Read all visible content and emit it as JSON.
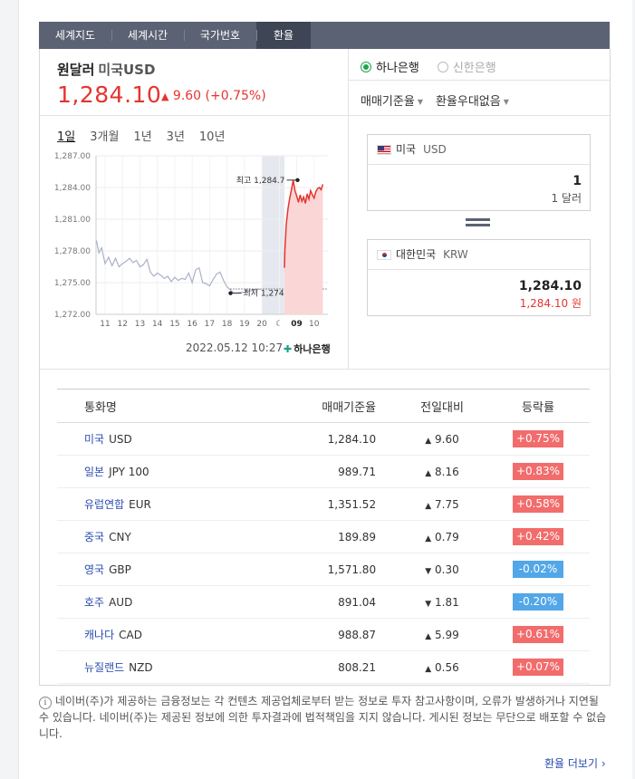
{
  "tabs": [
    {
      "label": "세계지도",
      "active": false
    },
    {
      "label": "세계시간",
      "active": false
    },
    {
      "label": "국가번호",
      "active": false
    },
    {
      "label": "환율",
      "active": true
    }
  ],
  "summary": {
    "title": "원달러",
    "subtitle": "미국USD",
    "rate": "1,284.10",
    "change_arrow": "▲",
    "change": "9.60",
    "change_pct": "(+0.75%)",
    "up_color": "#e4352f"
  },
  "periods": [
    {
      "label": "1일",
      "active": true
    },
    {
      "label": "3개월",
      "active": false
    },
    {
      "label": "1년",
      "active": false
    },
    {
      "label": "3년",
      "active": false
    },
    {
      "label": "10년",
      "active": false
    }
  ],
  "chart_data": {
    "type": "line",
    "x_ticks": [
      "11",
      "12",
      "13",
      "14",
      "15",
      "16",
      "17",
      "18",
      "19",
      "20",
      "☾",
      "09",
      "10"
    ],
    "y_ticks": [
      1287.0,
      1284.0,
      1281.0,
      1278.0,
      1275.0,
      1272.0
    ],
    "y_tick_labels": [
      "1,287.00",
      "1,284.00",
      "1,281.00",
      "1,278.00",
      "1,275.00",
      "1,272.00"
    ],
    "ylim": [
      1272,
      1287
    ],
    "x_range": [
      10.5,
      10.8
    ],
    "night_band": [
      20.0,
      21.3
    ],
    "baseline": 1274.4,
    "series_prev": {
      "color": "#aab0c8",
      "x": [
        10.5,
        10.65,
        10.8,
        11.0,
        11.2,
        11.4,
        11.6,
        11.8,
        12.0,
        12.2,
        12.4,
        12.6,
        12.8,
        13.0,
        13.2,
        13.4,
        13.6,
        13.8,
        14.0,
        14.2,
        14.4,
        14.6,
        14.8,
        15.0,
        15.2,
        15.4,
        15.6,
        15.8,
        16.0,
        16.2,
        16.4,
        16.6,
        16.8,
        17.0,
        17.2,
        17.4,
        17.6,
        17.8,
        18.0,
        18.2,
        18.4
      ],
      "y": [
        1279.0,
        1277.8,
        1278.3,
        1276.8,
        1277.4,
        1276.6,
        1277.3,
        1276.5,
        1276.8,
        1277.0,
        1277.3,
        1276.9,
        1277.1,
        1276.5,
        1276.7,
        1277.2,
        1276.0,
        1275.6,
        1275.9,
        1275.7,
        1275.4,
        1275.6,
        1275.1,
        1275.5,
        1275.2,
        1275.4,
        1275.3,
        1275.9,
        1275.0,
        1276.2,
        1276.4,
        1275.0,
        1274.9,
        1274.7,
        1275.3,
        1275.8,
        1276.0,
        1275.2,
        1274.6,
        1274.3,
        1274.0
      ]
    },
    "series_prev_tail": {
      "color": "#aab0c8",
      "x": [
        18.4,
        19.0,
        19.6,
        20.0
      ],
      "y": [
        1274.0,
        1274.1,
        1274.3,
        1274.4
      ]
    },
    "series_today": {
      "name": "",
      "color": "#e4352f",
      "fill": "#fbd6d6",
      "x": [
        21.3,
        21.32,
        21.4,
        21.5,
        21.6,
        21.7,
        21.8,
        21.9,
        22.0,
        22.1,
        22.2,
        22.3,
        22.4,
        22.5,
        22.6,
        22.7,
        22.8,
        22.9,
        23.0,
        23.1,
        23.2,
        23.3,
        23.4,
        23.5
      ],
      "y": [
        1276.4,
        1278.0,
        1280.5,
        1282.0,
        1283.0,
        1283.8,
        1284.7,
        1283.7,
        1283.2,
        1282.6,
        1283.3,
        1282.7,
        1283.1,
        1282.5,
        1283.4,
        1282.9,
        1283.7,
        1283.3,
        1283.0,
        1283.6,
        1283.9,
        1284.0,
        1283.8,
        1284.3
      ]
    },
    "max": {
      "label": "최고",
      "value": "1,284.7",
      "x": 22.05,
      "y": 1284.7
    },
    "min": {
      "label": "최저",
      "value": "1,274",
      "x": 18.2,
      "y": 1274.0
    },
    "grid": true,
    "title": "",
    "xlabel": "",
    "ylabel": ""
  },
  "timestamp": "2022.05.12 10:27",
  "bank_logo_text": "하나은행",
  "banks": [
    {
      "label": "하나은행",
      "selected": true
    },
    {
      "label": "신한은행",
      "selected": false
    }
  ],
  "dropdowns": [
    {
      "label": "매매기준율"
    },
    {
      "label": "환율우대없음"
    }
  ],
  "converter": {
    "from": {
      "country": "미국",
      "code": "USD",
      "amount": "1",
      "unit": "1 달러"
    },
    "to": {
      "country": "대한민국",
      "code": "KRW",
      "amount": "1,284.10",
      "unit": "1,284.10 원"
    }
  },
  "table": {
    "headers": [
      "통화명",
      "매매기준율",
      "전일대비",
      "등락률"
    ],
    "rows": [
      {
        "name": "미국",
        "code": "USD",
        "rate": "1,284.10",
        "dir": "up",
        "arrow": "▲",
        "diff": "9.60",
        "pct": "+0.75%"
      },
      {
        "name": "일본",
        "code": "JPY 100",
        "rate": "989.71",
        "dir": "up",
        "arrow": "▲",
        "diff": "8.16",
        "pct": "+0.83%"
      },
      {
        "name": "유럽연합",
        "code": "EUR",
        "rate": "1,351.52",
        "dir": "up",
        "arrow": "▲",
        "diff": "7.75",
        "pct": "+0.58%"
      },
      {
        "name": "중국",
        "code": "CNY",
        "rate": "189.89",
        "dir": "up",
        "arrow": "▲",
        "diff": "0.79",
        "pct": "+0.42%"
      },
      {
        "name": "영국",
        "code": "GBP",
        "rate": "1,571.80",
        "dir": "dn",
        "arrow": "▼",
        "diff": "0.30",
        "pct": "-0.02%"
      },
      {
        "name": "호주",
        "code": "AUD",
        "rate": "891.04",
        "dir": "dn",
        "arrow": "▼",
        "diff": "1.81",
        "pct": "-0.20%"
      },
      {
        "name": "캐나다",
        "code": "CAD",
        "rate": "988.87",
        "dir": "up",
        "arrow": "▲",
        "diff": "5.99",
        "pct": "+0.61%"
      },
      {
        "name": "뉴질랜드",
        "code": "NZD",
        "rate": "808.21",
        "dir": "up",
        "arrow": "▲",
        "diff": "0.56",
        "pct": "+0.07%"
      }
    ]
  },
  "notice": "네이버(주)가 제공하는 금융정보는 각 컨텐츠 제공업체로부터 받는 정보로 투자 참고사항이며, 오류가 발생하거나 지연될 수 있습니다. 네이버(주)는 제공된 정보에 의한 투자결과에 법적책임을 지지 않습니다. 게시된 정보는 무단으로 배포할 수 없습니다.",
  "more_link": "환율 더보기"
}
